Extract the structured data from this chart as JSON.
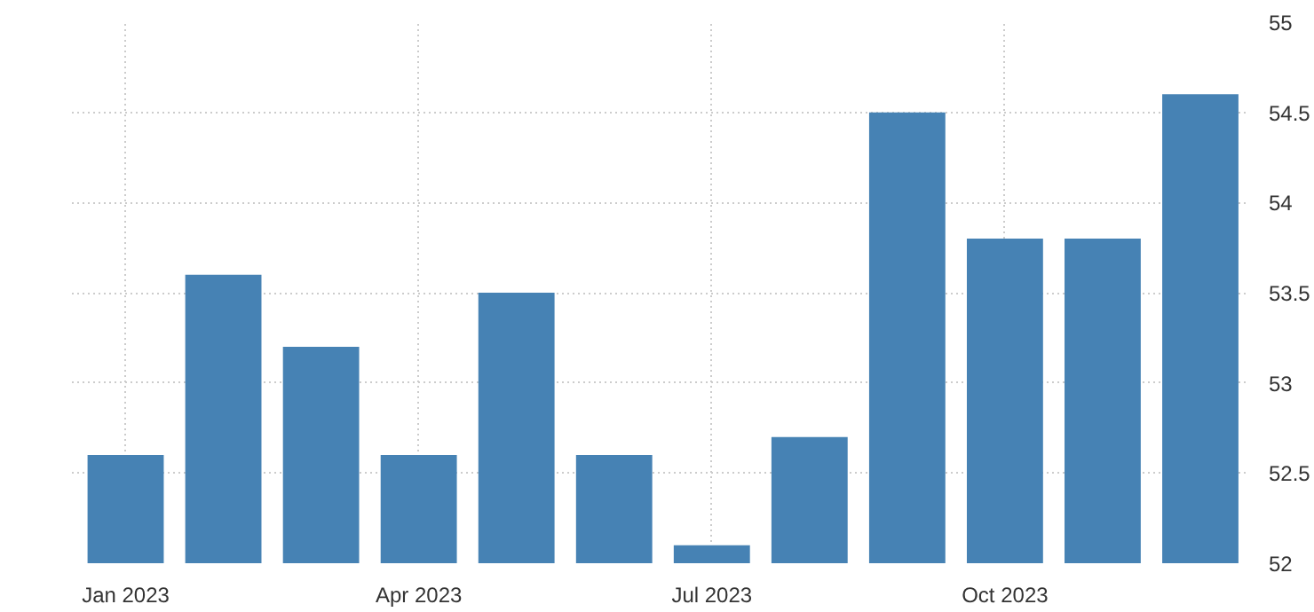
{
  "chart_data": {
    "type": "bar",
    "categories": [
      "Jan 2023",
      null,
      null,
      "Apr 2023",
      null,
      null,
      "Jul 2023",
      null,
      null,
      "Oct 2023",
      null,
      null
    ],
    "values": [
      52.6,
      53.6,
      53.2,
      52.6,
      53.5,
      52.6,
      52.1,
      52.7,
      54.5,
      53.8,
      53.8,
      54.6
    ],
    "color": "#4682b4",
    "ylim": [
      52,
      55
    ],
    "yticks": [
      52,
      52.5,
      53,
      53.5,
      54,
      54.5,
      55
    ],
    "grid": true
  }
}
